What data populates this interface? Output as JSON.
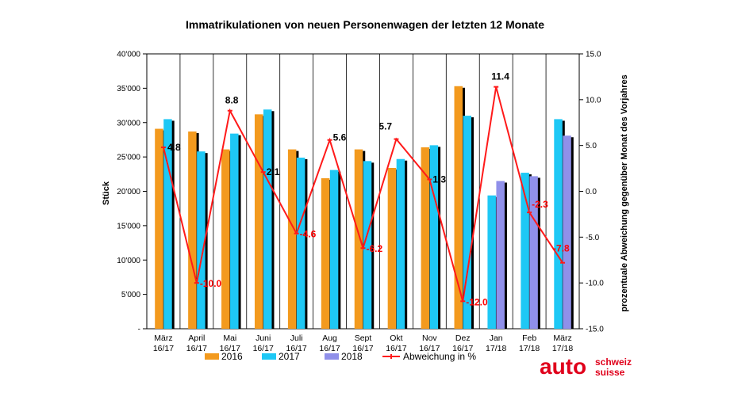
{
  "colors": {
    "s2016": "#f39a1e",
    "s2017": "#1ec8f5",
    "s2018": "#9090ea",
    "line": "#ff1a1a",
    "shadow": "#000000",
    "logo": "#e0001b"
  },
  "logo": {
    "main": "auto",
    "line1": "schweiz",
    "line2": "suisse"
  },
  "chart_data": {
    "type": "bar",
    "title": "Immatrikulationen von neuen Personenwagen der letzten 12 Monate",
    "ylabel": "Stück",
    "y2label": "prozentuale Abweichung gegenüber Monat des Vorjahres",
    "ylim": [
      0,
      40000
    ],
    "y2lim": [
      -15,
      15
    ],
    "yticks": [
      "-",
      "5'000",
      "10'000",
      "15'000",
      "20'000",
      "25'000",
      "30'000",
      "35'000",
      "40'000"
    ],
    "y2ticks": [
      "-15.0",
      "-10.0",
      "-5.0",
      "0.0",
      "5.0",
      "10.0",
      "15.0"
    ],
    "categories": [
      [
        "März",
        "16/17"
      ],
      [
        "April",
        "16/17"
      ],
      [
        "Mai",
        "16/17"
      ],
      [
        "Juni",
        "16/17"
      ],
      [
        "Juli",
        "16/17"
      ],
      [
        "Aug",
        "16/17"
      ],
      [
        "Sept",
        "16/17"
      ],
      [
        "Okt",
        "16/17"
      ],
      [
        "Nov",
        "16/17"
      ],
      [
        "Dez",
        "16/17"
      ],
      [
        "Jan",
        "17/18"
      ],
      [
        "Feb",
        "17/18"
      ],
      [
        "März",
        "17/18"
      ]
    ],
    "series": [
      {
        "name": "2016",
        "values": [
          29100,
          28700,
          26100,
          31200,
          26100,
          21900,
          26100,
          23400,
          26400,
          35300,
          null,
          null,
          null
        ]
      },
      {
        "name": "2017",
        "values": [
          30500,
          25800,
          28400,
          31900,
          24900,
          23100,
          24400,
          24700,
          26700,
          31000,
          19400,
          22700,
          30500
        ]
      },
      {
        "name": "2018",
        "values": [
          null,
          null,
          null,
          null,
          null,
          null,
          null,
          null,
          null,
          null,
          21500,
          22200,
          28100
        ]
      }
    ],
    "line_series": {
      "name": "Abweichung in %",
      "values": [
        4.8,
        -10.0,
        8.8,
        2.1,
        -4.6,
        5.6,
        -6.2,
        5.7,
        1.3,
        -12.0,
        11.4,
        -2.3,
        -7.8
      ],
      "labels": [
        "4.8",
        "-10.0",
        "8.8",
        "2.1",
        "-4.6",
        "5.6",
        "-6.2",
        "5.7",
        "1.3",
        "-12.0",
        "11.4",
        "-2.3",
        "-7.8"
      ]
    },
    "legend": [
      "2016",
      "2017",
      "2018",
      "Abweichung in %"
    ],
    "legend_position": "bottom",
    "grid": "vertical"
  }
}
